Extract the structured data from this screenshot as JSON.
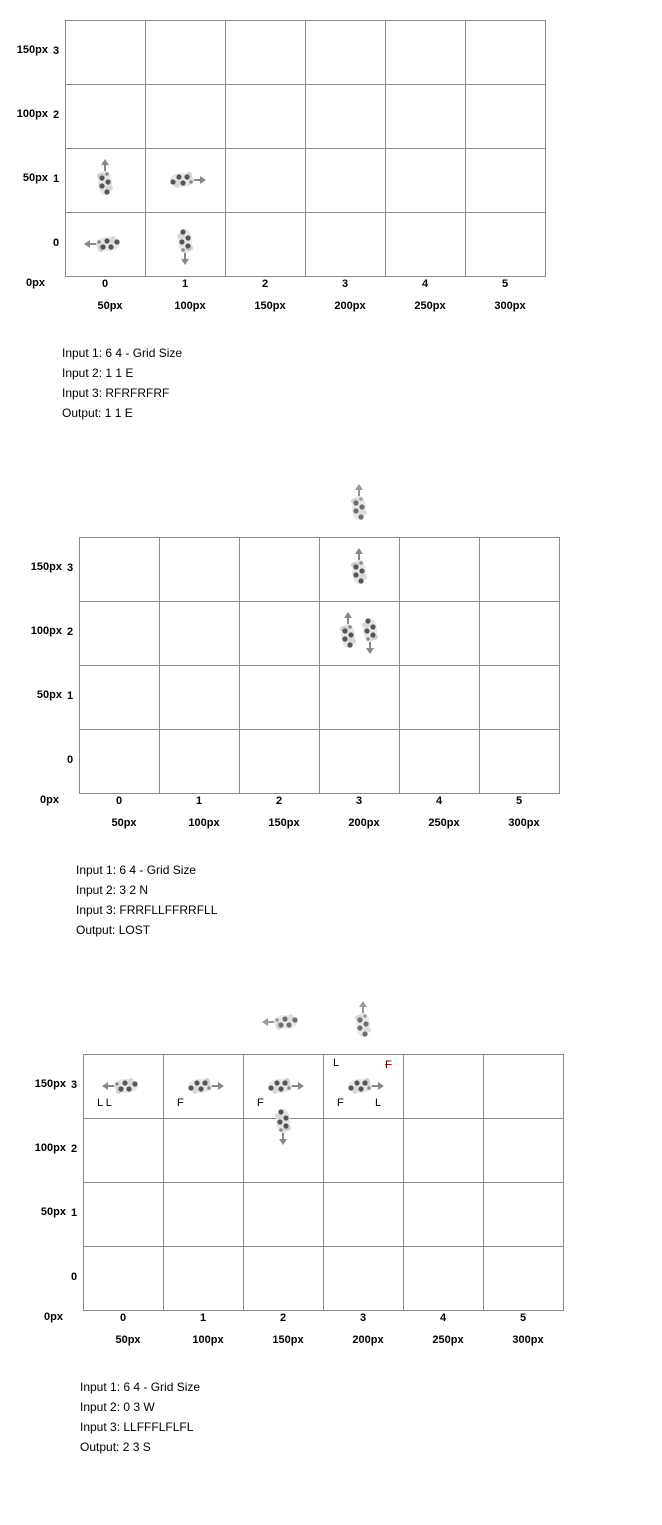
{
  "y_labels": [
    {
      "idx": "3",
      "px": "150px"
    },
    {
      "idx": "2",
      "px": "100px"
    },
    {
      "idx": "1",
      "px": "50px"
    },
    {
      "idx": "0",
      "px": ""
    }
  ],
  "origin_label": "0px",
  "x_labels": [
    {
      "idx": "0",
      "px": "50px"
    },
    {
      "idx": "1",
      "px": "100px"
    },
    {
      "idx": "2",
      "px": "150px"
    },
    {
      "idx": "3",
      "px": "200px"
    },
    {
      "idx": "4",
      "px": "250px"
    },
    {
      "idx": "5",
      "px": "300px"
    }
  ],
  "grid": {
    "cols": 6,
    "rows": 4
  },
  "panels": [
    {
      "inputs": [
        "Input 1: 6 4 - Grid Size",
        "Input 2: 1 1 E",
        "Input 3: RFRFRFRF",
        "Output: 1 1 E"
      ],
      "rovers": [
        {
          "col": 0,
          "row": 1,
          "dir": "N",
          "state": "normal"
        },
        {
          "col": 1,
          "row": 1,
          "dir": "E",
          "state": "normal"
        },
        {
          "col": 0,
          "row": 0,
          "dir": "W",
          "state": "normal"
        },
        {
          "col": 1,
          "row": 0,
          "dir": "S",
          "state": "normal"
        }
      ],
      "commands": []
    },
    {
      "inputs": [
        "Input 1: 6 4 - Grid Size",
        "Input 2: 3 2 N",
        "Input 3: FRRFLLFFRRFLL",
        "Output: LOST"
      ],
      "rovers": [
        {
          "col": 3,
          "row": 4,
          "dir": "N",
          "state": "lost"
        },
        {
          "col": 3,
          "row": 3,
          "dir": "N",
          "state": "normal"
        },
        {
          "col": 3,
          "row": 2,
          "dir": "N",
          "state": "normal",
          "shift": "left"
        },
        {
          "col": 3,
          "row": 2,
          "dir": "S",
          "state": "normal",
          "shift": "right"
        }
      ],
      "commands": []
    },
    {
      "inputs": [
        "Input 1: 6 4 - Grid Size",
        "Input 2: 0 3 W",
        "Input 3: LLFFFLFLFL",
        "Output: 2 3 S"
      ],
      "rovers": [
        {
          "col": 2,
          "row": 4,
          "dir": "W",
          "state": "lost"
        },
        {
          "col": 3,
          "row": 4,
          "dir": "N",
          "state": "lost"
        },
        {
          "col": 0,
          "row": 3,
          "dir": "W",
          "state": "normal"
        },
        {
          "col": 1,
          "row": 3,
          "dir": "E",
          "state": "normal"
        },
        {
          "col": 2,
          "row": 3,
          "dir": "E",
          "state": "normal"
        },
        {
          "col": 2,
          "row": 3,
          "dir": "S",
          "state": "normal",
          "shift": "down"
        },
        {
          "col": 3,
          "row": 3,
          "dir": "E",
          "state": "normal"
        }
      ],
      "commands": [
        {
          "col": 0,
          "row": 3,
          "text": "L L",
          "pos": "bottom-left"
        },
        {
          "col": 1,
          "row": 3,
          "text": "F",
          "pos": "bottom-left"
        },
        {
          "col": 2,
          "row": 3,
          "text": "F",
          "pos": "bottom-left"
        },
        {
          "col": 3,
          "row": 3,
          "text": "F",
          "pos": "bottom-left"
        },
        {
          "col": 3,
          "row": 3,
          "text": "L",
          "pos": "bottom-right"
        },
        {
          "col": 3,
          "row": 3,
          "text": "L",
          "pos": "top-left"
        },
        {
          "col": 3,
          "row": 3,
          "text": "F",
          "pos": "top-right",
          "struck": true
        }
      ]
    }
  ],
  "colors": {
    "grid_line": "#8a8a8a",
    "rover": "#555555",
    "arrow": "#888888",
    "strike": "#cc0000"
  }
}
